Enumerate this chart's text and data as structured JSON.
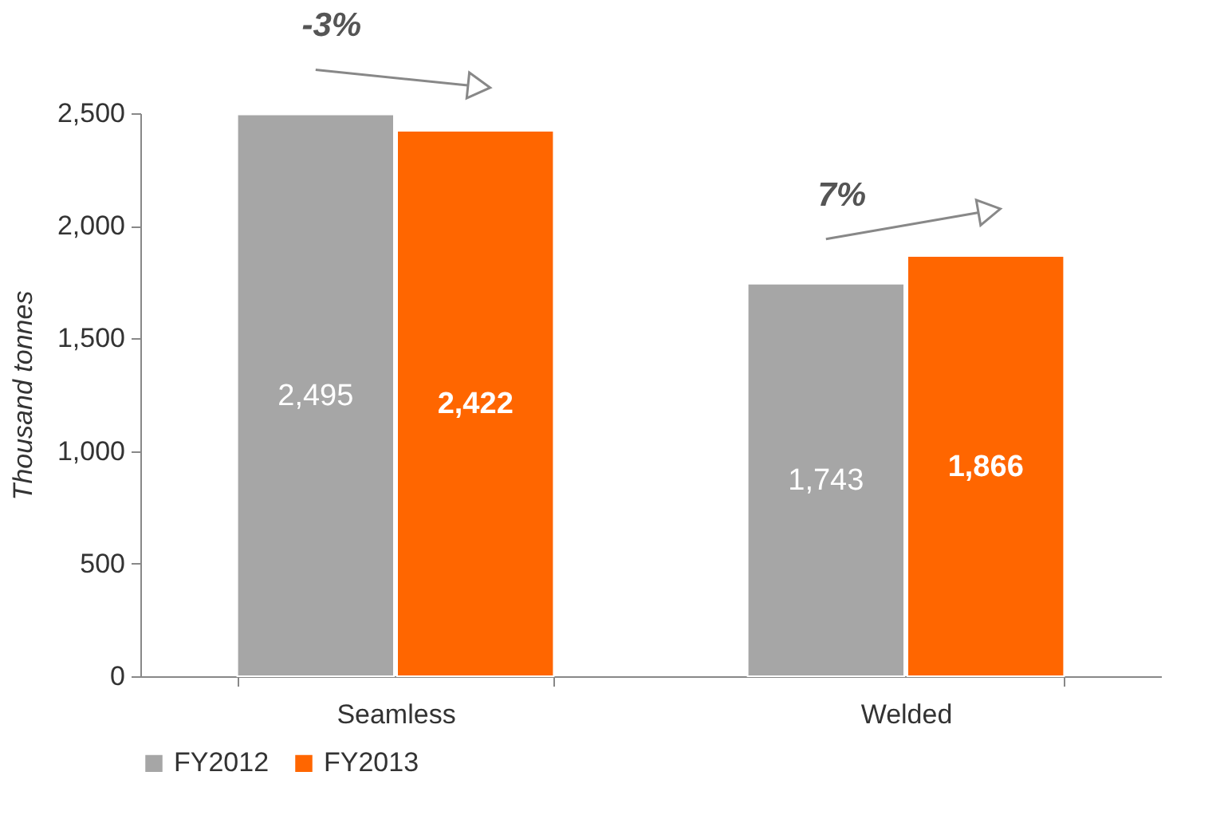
{
  "chart_data": {
    "type": "bar",
    "ylabel": "Thousand tonnes",
    "categories": [
      "Seamless",
      "Welded"
    ],
    "series": [
      {
        "name": "FY2012",
        "color": "#a6a6a6",
        "values": [
          2495,
          1743
        ],
        "value_labels": [
          "2,495",
          "1,743"
        ]
      },
      {
        "name": "FY2013",
        "color": "#ff6600",
        "values": [
          2422,
          1866
        ],
        "value_labels": [
          "2,422",
          "1,866"
        ]
      }
    ],
    "ylim": [
      0,
      2500
    ],
    "yticks": [
      0,
      {
        "value": 500,
        "label": "500"
      },
      {
        "value": 1000,
        "label": "1,000"
      },
      {
        "value": 1500,
        "label": "1,500"
      },
      {
        "value": 2000,
        "label": "2,000"
      },
      {
        "value": 2500,
        "label": "2,500"
      }
    ],
    "grid": false,
    "legend": "bottom",
    "annotations": [
      "-3%",
      "7%"
    ]
  }
}
